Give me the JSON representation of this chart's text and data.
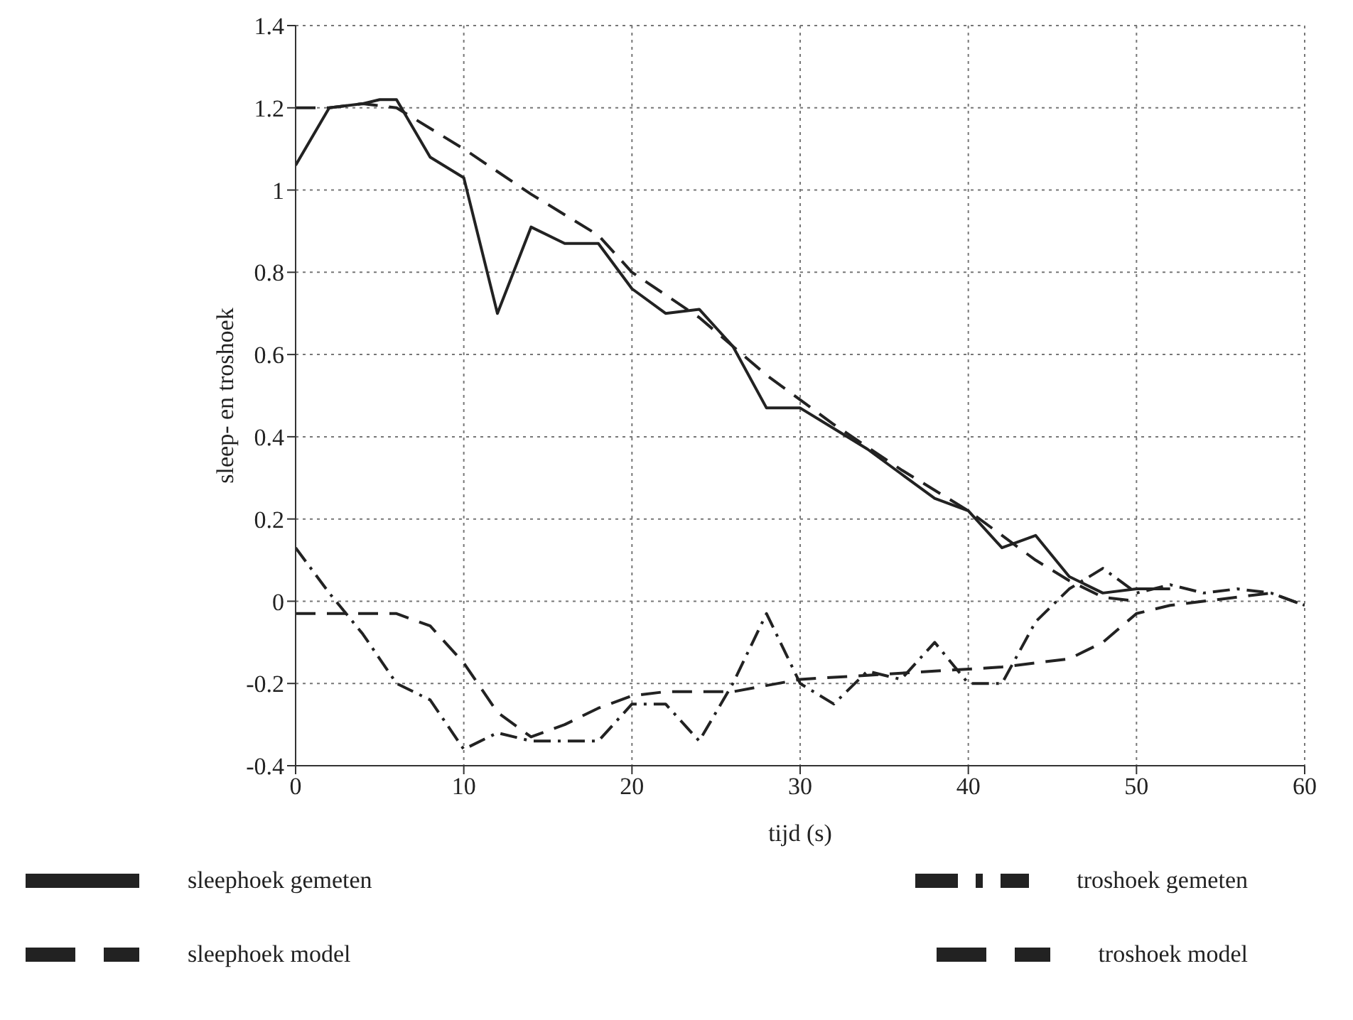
{
  "chart_data": {
    "type": "line",
    "xlabel": "tijd (s)",
    "ylabel": "sleep- en troshoek",
    "xlim": [
      0,
      60
    ],
    "xticks": [
      0,
      10,
      20,
      30,
      40,
      50,
      60
    ],
    "ylim": [
      -0.4,
      1.4
    ],
    "yticks": [
      -0.4,
      -0.2,
      0,
      0.2,
      0.4,
      0.6,
      0.8,
      1,
      1.2,
      1.4
    ],
    "grid": true,
    "legend": "bottom",
    "marker": "none",
    "series": [
      {
        "name": "sleephoek gemeten",
        "color": "#222222",
        "line_style": "solid",
        "x": [
          0,
          2,
          4,
          5,
          6,
          8,
          10,
          12,
          14,
          16,
          18,
          20,
          22,
          24,
          26,
          28,
          30,
          32,
          34,
          36,
          38,
          40,
          42,
          44,
          46,
          48,
          50,
          52
        ],
        "values": [
          1.06,
          1.2,
          1.21,
          1.22,
          1.22,
          1.08,
          1.03,
          0.7,
          0.91,
          0.87,
          0.87,
          0.76,
          0.7,
          0.71,
          0.62,
          0.47,
          0.47,
          0.42,
          0.37,
          0.31,
          0.25,
          0.22,
          0.13,
          0.16,
          0.06,
          0.02,
          0.03,
          0.03
        ]
      },
      {
        "name": "sleephoek model",
        "color": "#222222",
        "line_style": "dashed",
        "x": [
          0,
          2,
          4,
          6,
          10,
          14,
          18,
          20,
          24,
          28,
          32,
          36,
          40,
          44,
          46,
          48,
          50
        ],
        "values": [
          1.2,
          1.2,
          1.21,
          1.2,
          1.1,
          0.99,
          0.89,
          0.8,
          0.69,
          0.55,
          0.43,
          0.32,
          0.22,
          0.1,
          0.05,
          0.01,
          0
        ]
      },
      {
        "name": "troshoek gemeten",
        "color": "#222222",
        "line_style": "dashdot",
        "x": [
          0,
          2,
          4,
          6,
          8,
          10,
          12,
          14,
          16,
          18,
          20,
          22,
          24,
          26,
          28,
          30,
          32,
          34,
          36,
          38,
          40,
          42,
          44,
          46,
          48,
          50,
          52,
          54,
          56,
          58,
          60
        ],
        "values": [
          0.13,
          0.02,
          -0.08,
          -0.2,
          -0.24,
          -0.36,
          -0.32,
          -0.34,
          -0.34,
          -0.34,
          -0.25,
          -0.25,
          -0.34,
          -0.2,
          -0.03,
          -0.2,
          -0.25,
          -0.17,
          -0.19,
          -0.1,
          -0.2,
          -0.2,
          -0.05,
          0.03,
          0.08,
          0.02,
          0.04,
          0.02,
          0.03,
          0.02,
          -0.01
        ]
      },
      {
        "name": "troshoek model",
        "color": "#222222",
        "line_style": "dashed",
        "x": [
          0,
          4,
          6,
          8,
          10,
          12,
          14,
          16,
          18,
          20,
          22,
          26,
          30,
          34,
          38,
          42,
          44,
          46,
          48,
          50,
          52,
          56,
          58,
          60
        ],
        "values": [
          -0.03,
          -0.03,
          -0.03,
          -0.06,
          -0.15,
          -0.27,
          -0.33,
          -0.3,
          -0.26,
          -0.23,
          -0.22,
          -0.22,
          -0.19,
          -0.18,
          -0.17,
          -0.16,
          -0.15,
          -0.14,
          -0.1,
          -0.03,
          -0.01,
          0.01,
          0.02,
          -0.01
        ]
      }
    ]
  }
}
